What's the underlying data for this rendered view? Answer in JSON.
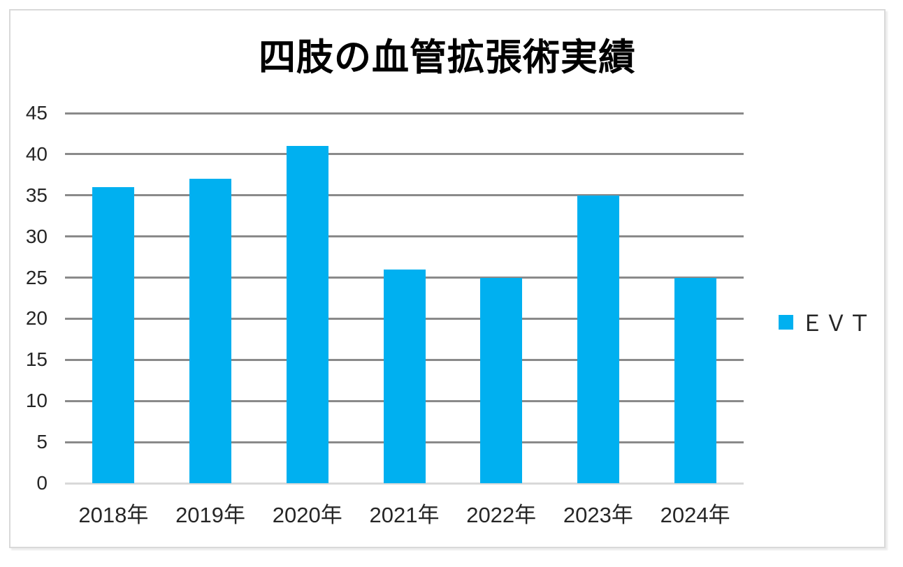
{
  "chart_data": {
    "type": "bar",
    "title": "四肢の血管拡張術実績",
    "categories": [
      "2018年",
      "2019年",
      "2020年",
      "2021年",
      "2022年",
      "2023年",
      "2024年"
    ],
    "series": [
      {
        "name": "ＥＶＴ",
        "values": [
          36,
          37,
          41,
          26,
          25,
          35,
          25
        ]
      }
    ],
    "xlabel": "",
    "ylabel": "",
    "ylim": [
      0,
      45
    ],
    "ytick_step": 5,
    "yticks": [
      0,
      5,
      10,
      15,
      20,
      25,
      30,
      35,
      40,
      45
    ],
    "grid": true,
    "legend_position": "right"
  },
  "colors": {
    "bar": "#00b0f0",
    "gridline": "#8a8a8a",
    "baseline": "#d9d9d9",
    "tick_text": "#262626",
    "title_text": "#000000",
    "frame_border": "#d9d9d9"
  }
}
